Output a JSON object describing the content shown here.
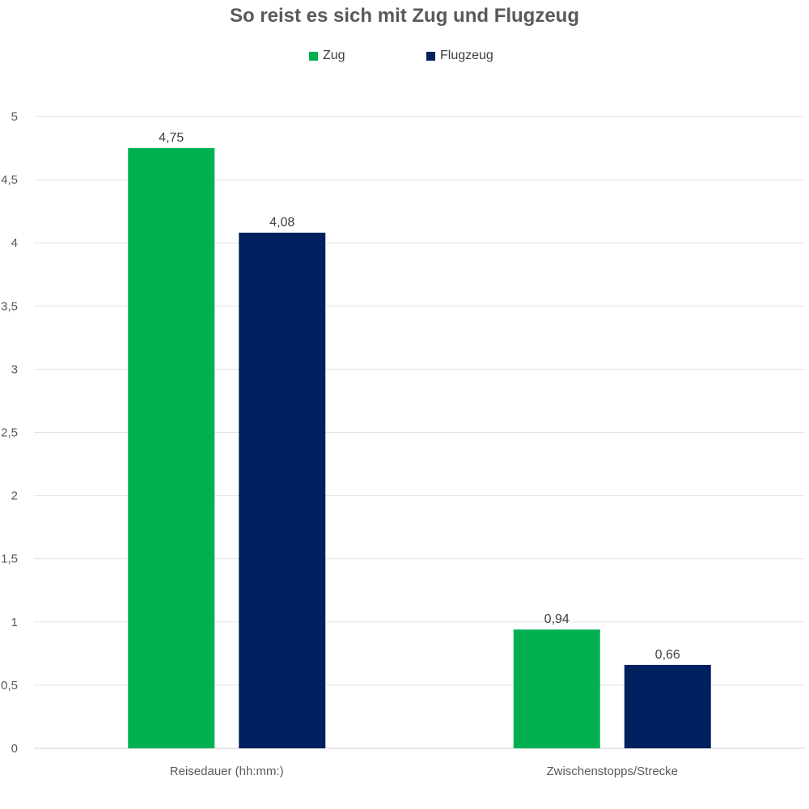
{
  "chart_data": {
    "type": "bar",
    "title": "So reist es sich mit Zug und Flugzeug",
    "categories": [
      "Reisedauer (hh:mm:)",
      "Zwischenstopps/Strecke"
    ],
    "series": [
      {
        "name": "Zug",
        "values": [
          4.75,
          0.94
        ],
        "labels": [
          "4,75",
          "0,94"
        ],
        "color": "#00b050"
      },
      {
        "name": "Flugzeug",
        "values": [
          4.08,
          0.66
        ],
        "labels": [
          "4,08",
          "0,66"
        ],
        "color": "#002060"
      }
    ],
    "ylim": [
      0,
      5
    ],
    "yticks": [
      0,
      0.5,
      1,
      1.5,
      2,
      2.5,
      3,
      3.5,
      4,
      4.5,
      5
    ],
    "ytick_labels": [
      "0",
      "0,5",
      "1",
      "1,5",
      "2",
      "2,5",
      "3",
      "3,5",
      "4",
      "4,5",
      "5"
    ],
    "grid": true,
    "legend": "top-center"
  }
}
